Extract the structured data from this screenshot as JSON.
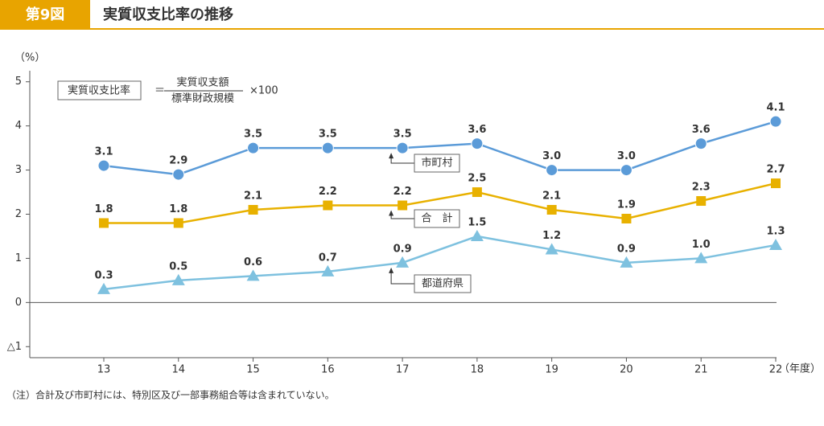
{
  "header": {
    "figure": "第9図",
    "title": "実質収支比率の推移"
  },
  "chart_data": {
    "type": "line",
    "y_label": "（%）",
    "x_label": "（年度）",
    "categories": [
      "13",
      "14",
      "15",
      "16",
      "17",
      "18",
      "19",
      "20",
      "21",
      "22"
    ],
    "ylim": [
      -1.25,
      5.25
    ],
    "yticks": [
      {
        "value": -1,
        "label": "△1"
      },
      0,
      1,
      2,
      3,
      4,
      5
    ],
    "series": [
      {
        "name": "市町村",
        "color": "#5b9bd8",
        "marker": "circle",
        "values": [
          3.1,
          2.9,
          3.5,
          3.5,
          3.5,
          3.6,
          3.0,
          3.0,
          3.6,
          4.1
        ],
        "value_labels": [
          "3.1",
          "2.9",
          "3.5",
          "3.5",
          "3.5",
          "3.6",
          "3.0",
          "3.0",
          "3.6",
          "4.1"
        ]
      },
      {
        "name": "合　計",
        "color": "#e8b100",
        "marker": "square",
        "values": [
          1.8,
          1.8,
          2.1,
          2.2,
          2.2,
          2.5,
          2.1,
          1.9,
          2.3,
          2.7
        ],
        "value_labels": [
          "1.8",
          "1.8",
          "2.1",
          "2.2",
          "2.2",
          "2.5",
          "2.1",
          "1.9",
          "2.3",
          "2.7"
        ]
      },
      {
        "name": "都道府県",
        "color": "#7ec1df",
        "marker": "triangle",
        "values": [
          0.3,
          0.5,
          0.6,
          0.7,
          0.9,
          1.5,
          1.2,
          0.9,
          1.0,
          1.3
        ],
        "value_labels": [
          "0.3",
          "0.5",
          "0.6",
          "0.7",
          "0.9",
          "1.5",
          "1.2",
          "0.9",
          "1.0",
          "1.3"
        ]
      }
    ],
    "formula": {
      "label": "実質収支比率",
      "equals": "＝",
      "numerator": "実質収支額",
      "denominator": "標準財政規模",
      "multiplier": "×100"
    },
    "note": "（注）合計及び市町村には、特別区及び一部事務組合等は含まれていない。"
  }
}
